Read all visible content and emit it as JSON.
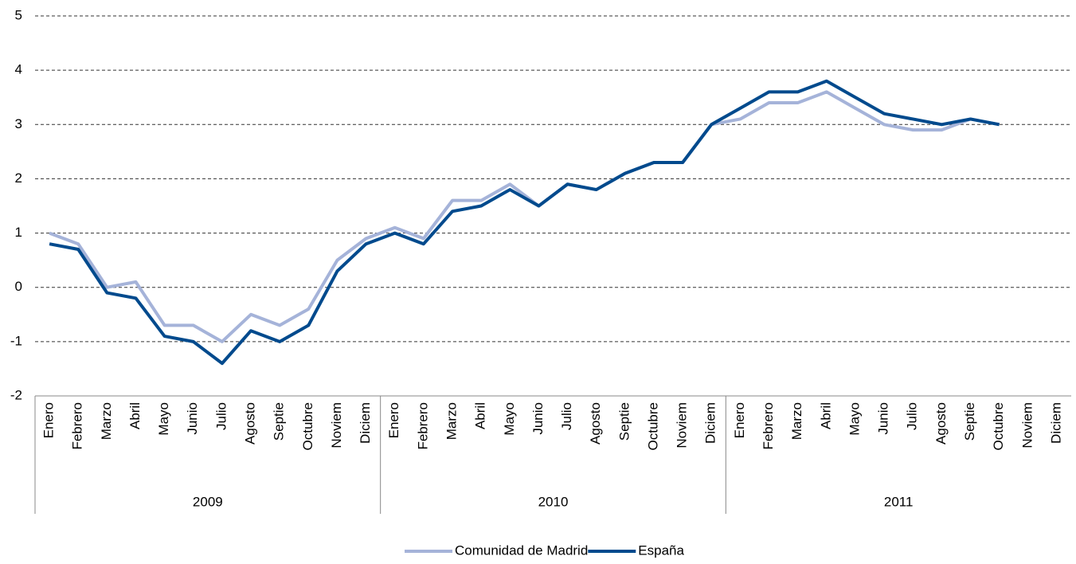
{
  "chart_data": {
    "type": "line",
    "categories": [
      "Enero",
      "Febrero",
      "Marzo",
      "Abril",
      "Mayo",
      "Junio",
      "Julio",
      "Agosto",
      "Septie",
      "Octubre",
      "Noviem",
      "Diciem",
      "Enero",
      "Febrero",
      "Marzo",
      "Abril",
      "Mayo",
      "Junio",
      "Julio",
      "Agosto",
      "Septie",
      "Octubre",
      "Noviem",
      "Diciem",
      "Enero",
      "Febrero",
      "Marzo",
      "Abril",
      "Mayo",
      "Junio",
      "Julio",
      "Agosto",
      "Septie",
      "Octubre",
      "Noviem",
      "Diciem"
    ],
    "groups": [
      "2009",
      "2010",
      "2011"
    ],
    "series": [
      {
        "name": "Comunidad de Madrid",
        "color": "#a5b3d9",
        "values": [
          1.0,
          0.8,
          0.0,
          0.1,
          -0.7,
          -0.7,
          -1.0,
          -0.5,
          -0.7,
          -0.4,
          0.5,
          0.9,
          1.1,
          0.9,
          1.6,
          1.6,
          1.9,
          1.5,
          1.9,
          1.8,
          2.1,
          2.3,
          2.3,
          3.0,
          3.1,
          3.4,
          3.4,
          3.6,
          3.3,
          3.0,
          2.9,
          2.9,
          3.1,
          3.0,
          null,
          null
        ]
      },
      {
        "name": "España",
        "color": "#004a8d",
        "values": [
          0.8,
          0.7,
          -0.1,
          -0.2,
          -0.9,
          -1.0,
          -1.4,
          -0.8,
          -1.0,
          -0.7,
          0.3,
          0.8,
          1.0,
          0.8,
          1.4,
          1.5,
          1.8,
          1.5,
          1.9,
          1.8,
          2.1,
          2.3,
          2.3,
          3.0,
          3.3,
          3.6,
          3.6,
          3.8,
          3.5,
          3.2,
          3.1,
          3.0,
          3.1,
          3.0,
          null,
          null
        ]
      }
    ],
    "ylim": [
      -2,
      5
    ],
    "yticks": [
      -2,
      -1,
      0,
      1,
      2,
      3,
      4,
      5
    ],
    "grid": true,
    "legend": "bottom"
  }
}
